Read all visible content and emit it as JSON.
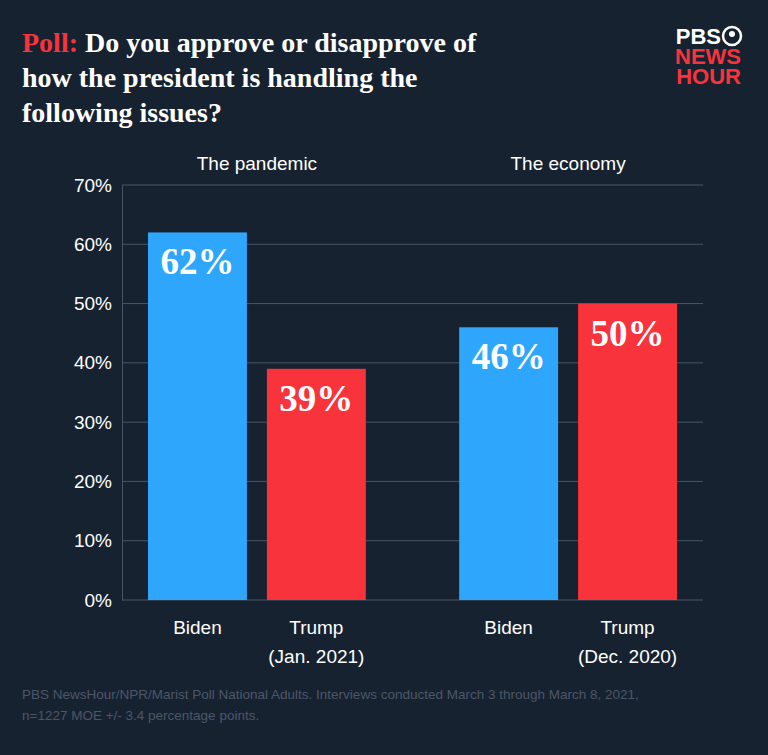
{
  "chart_data": {
    "type": "bar",
    "title_prefix": "Poll:",
    "title": "Do you approve or disapprove of how the president is handling the following issues?",
    "logo": [
      "PBS",
      "NEWS",
      "HOUR"
    ],
    "group_labels": [
      "The pandemic",
      "The economy"
    ],
    "categories": [
      "Biden",
      "Trump (Jan. 2021)",
      "Biden",
      "Trump (Dec. 2020)"
    ],
    "values": [
      62,
      39,
      46,
      50
    ],
    "value_labels": [
      "62%",
      "39%",
      "46%",
      "50%"
    ],
    "colors": [
      "#2ea6fc",
      "#f9333b",
      "#2ea6fc",
      "#f9333b"
    ],
    "ylim": [
      0,
      70
    ],
    "yticks": [
      {
        "value": 0,
        "label": "0%"
      },
      {
        "value": 10,
        "label": "10%"
      },
      {
        "value": 20,
        "label": "20%"
      },
      {
        "value": 30,
        "label": "30%"
      },
      {
        "value": 40,
        "label": "40%"
      },
      {
        "value": 50,
        "label": "50%"
      },
      {
        "value": 60,
        "label": "60%"
      },
      {
        "value": 70,
        "label": "70%"
      }
    ],
    "grid": true,
    "data_labels": true,
    "source": "PBS NewsHour/NPR/Marist Poll National Adults. Interviews conducted March 3 through March 8, 2021, n=1227 MOE +/- 3.4 percentage points."
  }
}
